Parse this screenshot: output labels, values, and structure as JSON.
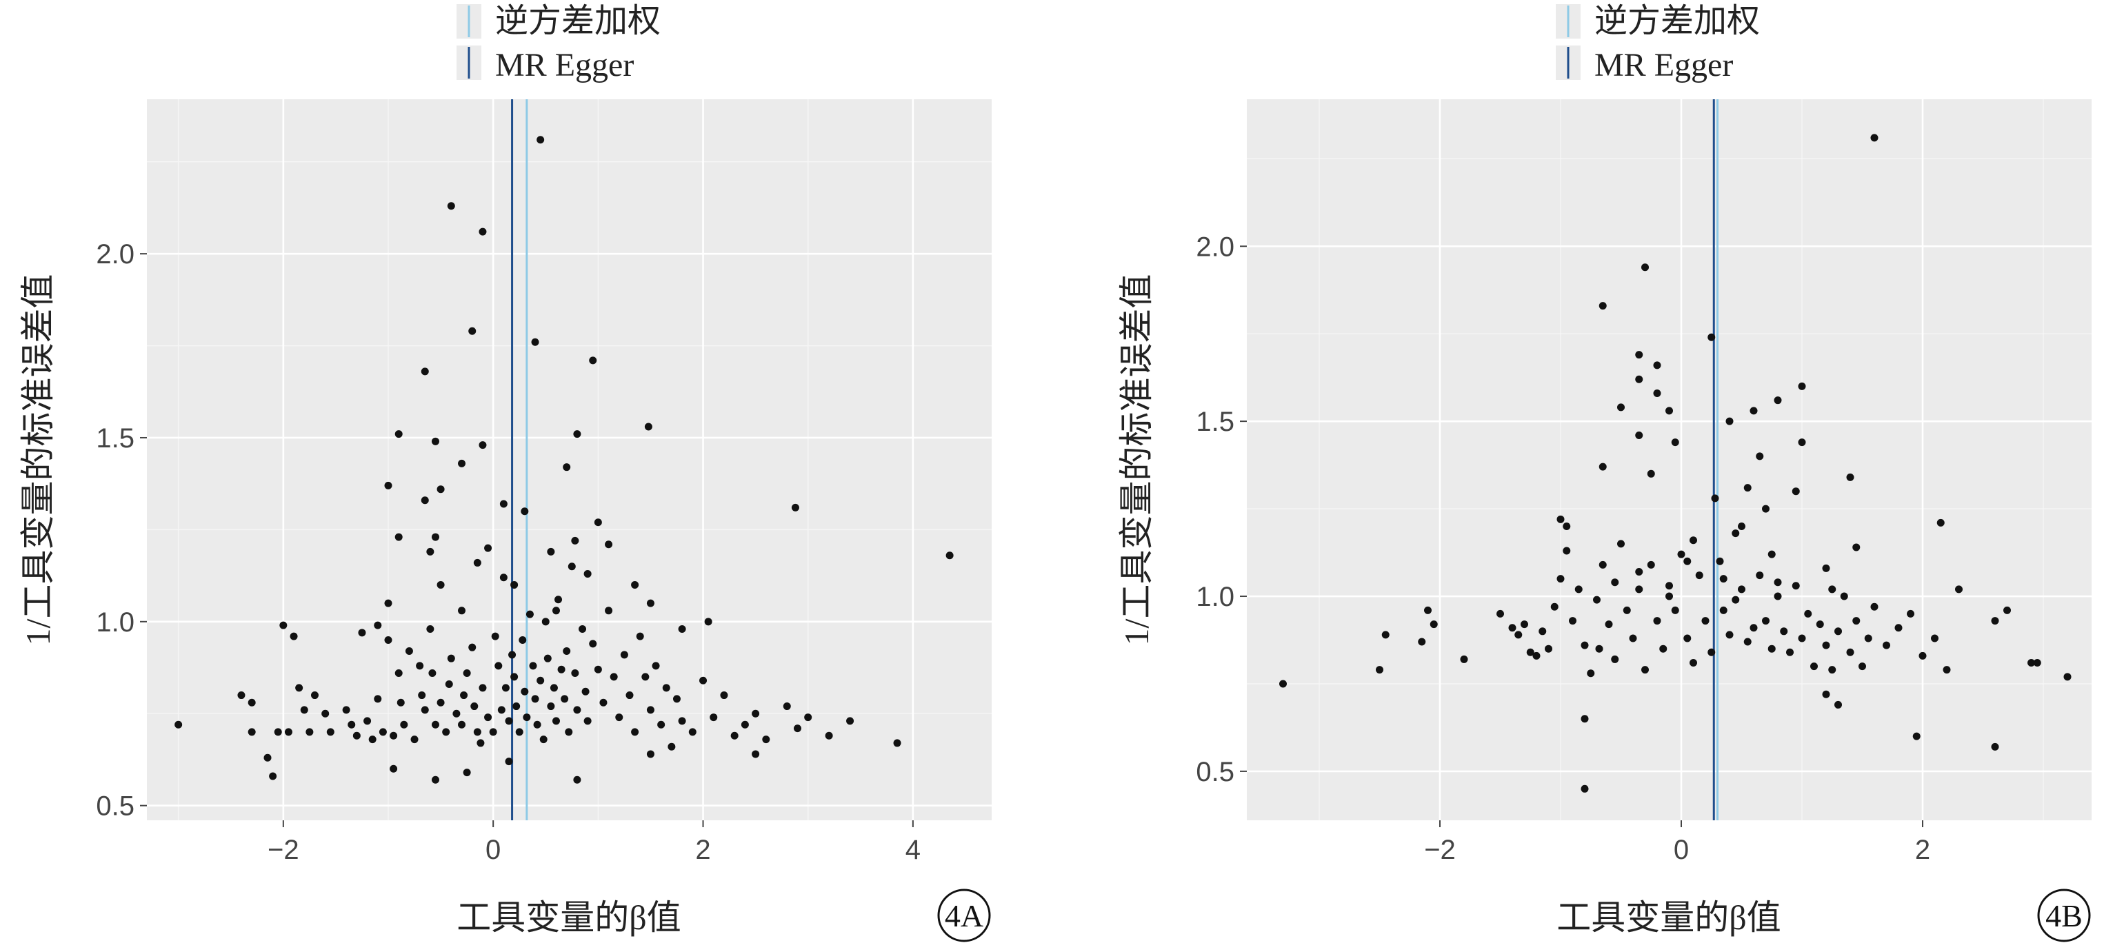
{
  "legend": {
    "items": [
      {
        "label": "逆方差加权",
        "color": "#8ecae6"
      },
      {
        "label": "MR Egger",
        "color": "#1f4e8c"
      }
    ]
  },
  "chart_data": [
    {
      "type": "scatter",
      "panel_label": "4A",
      "xlabel": "工具变量的β值",
      "ylabel": "1/工具变量的标准误差值",
      "xlim": [
        -3.3,
        4.75
      ],
      "ylim": [
        0.46,
        2.42
      ],
      "xticks": [
        -2,
        0,
        2,
        4
      ],
      "yticks": [
        0.5,
        1.0,
        1.5,
        2.0
      ],
      "xtick_labels": [
        "−2",
        "0",
        "2",
        "4"
      ],
      "ytick_labels": [
        "0.5",
        "1.0",
        "1.5",
        "2.0"
      ],
      "grid": true,
      "vlines": [
        {
          "name": "逆方差加权",
          "x": 0.32,
          "color": "#8ecae6"
        },
        {
          "name": "MR Egger",
          "x": 0.18,
          "color": "#1f4e8c"
        }
      ],
      "points": [
        [
          -3.0,
          0.72
        ],
        [
          -2.4,
          0.8
        ],
        [
          -2.3,
          0.78
        ],
        [
          -2.3,
          0.7
        ],
        [
          -2.15,
          0.63
        ],
        [
          -2.1,
          0.58
        ],
        [
          -2.05,
          0.7
        ],
        [
          -2.0,
          0.99
        ],
        [
          -1.95,
          0.7
        ],
        [
          -1.9,
          0.96
        ],
        [
          -1.85,
          0.82
        ],
        [
          -1.8,
          0.76
        ],
        [
          -1.75,
          0.7
        ],
        [
          -1.7,
          0.8
        ],
        [
          -1.6,
          0.75
        ],
        [
          -1.55,
          0.7
        ],
        [
          -1.4,
          0.76
        ],
        [
          -1.35,
          0.72
        ],
        [
          -1.3,
          0.69
        ],
        [
          -1.25,
          0.97
        ],
        [
          -1.2,
          0.73
        ],
        [
          -1.15,
          0.68
        ],
        [
          -1.1,
          0.79
        ],
        [
          -1.1,
          0.99
        ],
        [
          -1.05,
          0.7
        ],
        [
          -1.0,
          0.95
        ],
        [
          -1.0,
          1.05
        ],
        [
          -0.95,
          0.69
        ],
        [
          -0.9,
          0.86
        ],
        [
          -0.88,
          0.78
        ],
        [
          -0.85,
          0.72
        ],
        [
          -0.8,
          0.92
        ],
        [
          -0.75,
          0.68
        ],
        [
          -0.7,
          0.88
        ],
        [
          -0.68,
          0.8
        ],
        [
          -0.65,
          0.76
        ],
        [
          -0.6,
          0.98
        ],
        [
          -0.58,
          0.86
        ],
        [
          -0.55,
          0.72
        ],
        [
          -0.5,
          0.78
        ],
        [
          -0.45,
          0.7
        ],
        [
          -0.42,
          0.83
        ],
        [
          -0.4,
          0.9
        ],
        [
          -0.35,
          0.75
        ],
        [
          -0.3,
          0.72
        ],
        [
          -0.28,
          0.8
        ],
        [
          -0.25,
          0.86
        ],
        [
          -0.2,
          0.93
        ],
        [
          -0.18,
          0.77
        ],
        [
          -0.15,
          0.7
        ],
        [
          -0.12,
          0.67
        ],
        [
          -0.1,
          0.82
        ],
        [
          -0.05,
          0.74
        ],
        [
          0.0,
          0.7
        ],
        [
          0.02,
          0.96
        ],
        [
          0.05,
          0.88
        ],
        [
          0.08,
          0.76
        ],
        [
          0.1,
          1.12
        ],
        [
          0.12,
          0.82
        ],
        [
          0.15,
          0.73
        ],
        [
          0.18,
          0.91
        ],
        [
          0.2,
          0.85
        ],
        [
          0.22,
          0.77
        ],
        [
          0.25,
          0.7
        ],
        [
          0.28,
          0.95
        ],
        [
          0.3,
          0.81
        ],
        [
          0.32,
          0.74
        ],
        [
          0.35,
          1.02
        ],
        [
          0.38,
          0.88
        ],
        [
          0.4,
          0.79
        ],
        [
          0.42,
          0.72
        ],
        [
          0.45,
          0.84
        ],
        [
          0.48,
          0.68
        ],
        [
          0.5,
          1.0
        ],
        [
          0.52,
          0.9
        ],
        [
          0.55,
          0.77
        ],
        [
          0.58,
          0.82
        ],
        [
          0.6,
          0.73
        ],
        [
          0.62,
          1.06
        ],
        [
          0.65,
          0.87
        ],
        [
          0.68,
          0.79
        ],
        [
          0.7,
          0.92
        ],
        [
          0.72,
          0.7
        ],
        [
          0.75,
          1.15
        ],
        [
          0.78,
          0.86
        ],
        [
          0.8,
          0.76
        ],
        [
          0.85,
          0.98
        ],
        [
          0.88,
          0.81
        ],
        [
          0.9,
          0.73
        ],
        [
          0.95,
          0.94
        ],
        [
          1.0,
          0.87
        ],
        [
          1.05,
          0.78
        ],
        [
          1.1,
          1.03
        ],
        [
          1.15,
          0.85
        ],
        [
          1.2,
          0.74
        ],
        [
          1.25,
          0.91
        ],
        [
          1.3,
          0.8
        ],
        [
          1.35,
          0.7
        ],
        [
          1.4,
          0.96
        ],
        [
          1.45,
          0.85
        ],
        [
          1.5,
          0.76
        ],
        [
          1.55,
          0.88
        ],
        [
          1.6,
          0.72
        ],
        [
          1.65,
          0.82
        ],
        [
          1.7,
          0.66
        ],
        [
          1.75,
          0.79
        ],
        [
          1.8,
          0.73
        ],
        [
          1.9,
          0.7
        ],
        [
          2.0,
          0.84
        ],
        [
          2.05,
          1.0
        ],
        [
          2.1,
          0.74
        ],
        [
          2.2,
          0.8
        ],
        [
          2.3,
          0.69
        ],
        [
          2.4,
          0.72
        ],
        [
          2.5,
          0.75
        ],
        [
          2.6,
          0.68
        ],
        [
          2.8,
          0.77
        ],
        [
          2.9,
          0.71
        ],
        [
          3.0,
          0.74
        ],
        [
          3.2,
          0.69
        ],
        [
          3.4,
          0.73
        ],
        [
          3.85,
          0.67
        ],
        [
          4.35,
          1.18
        ],
        [
          2.88,
          1.31
        ],
        [
          1.48,
          1.53
        ],
        [
          -0.9,
          1.51
        ],
        [
          -0.4,
          2.13
        ],
        [
          -0.1,
          2.06
        ],
        [
          0.45,
          2.31
        ],
        [
          0.4,
          1.76
        ],
        [
          -0.2,
          1.79
        ],
        [
          0.95,
          1.71
        ],
        [
          -0.65,
          1.68
        ],
        [
          0.8,
          1.51
        ],
        [
          -0.55,
          1.49
        ],
        [
          -0.1,
          1.48
        ],
        [
          -0.3,
          1.43
        ],
        [
          0.7,
          1.42
        ],
        [
          -1.0,
          1.37
        ],
        [
          -0.5,
          1.36
        ],
        [
          -0.65,
          1.33
        ],
        [
          0.1,
          1.32
        ],
        [
          0.3,
          1.3
        ],
        [
          1.0,
          1.27
        ],
        [
          -0.55,
          1.23
        ],
        [
          -0.9,
          1.23
        ],
        [
          0.78,
          1.22
        ],
        [
          -0.05,
          1.2
        ],
        [
          0.55,
          1.19
        ],
        [
          1.1,
          1.21
        ],
        [
          -0.6,
          1.19
        ],
        [
          -0.15,
          1.16
        ],
        [
          0.9,
          1.13
        ],
        [
          0.2,
          1.1
        ],
        [
          -0.5,
          1.1
        ],
        [
          1.35,
          1.1
        ],
        [
          1.5,
          1.05
        ],
        [
          -0.3,
          1.03
        ],
        [
          0.6,
          1.03
        ],
        [
          1.8,
          0.98
        ],
        [
          -0.55,
          0.57
        ],
        [
          0.8,
          0.57
        ],
        [
          -0.25,
          0.59
        ],
        [
          -0.95,
          0.6
        ],
        [
          0.15,
          0.62
        ],
        [
          1.5,
          0.64
        ],
        [
          2.5,
          0.64
        ]
      ]
    },
    {
      "type": "scatter",
      "panel_label": "4B",
      "xlabel": "工具变量的β值",
      "ylabel": "1/工具变量的标准误差值",
      "xlim": [
        -3.6,
        3.4
      ],
      "ylim": [
        0.36,
        2.42
      ],
      "xticks": [
        -2,
        0,
        2
      ],
      "yticks": [
        0.5,
        1.0,
        1.5,
        2.0
      ],
      "xtick_labels": [
        "−2",
        "0",
        "2"
      ],
      "ytick_labels": [
        "0.5",
        "1.0",
        "1.5",
        "2.0"
      ],
      "grid": true,
      "vlines": [
        {
          "name": "逆方差加权",
          "x": 0.3,
          "color": "#8ecae6"
        },
        {
          "name": "MR Egger",
          "x": 0.27,
          "color": "#1f4e8c"
        }
      ],
      "points": [
        [
          -3.3,
          0.75
        ],
        [
          -2.5,
          0.79
        ],
        [
          -2.45,
          0.89
        ],
        [
          -2.15,
          0.87
        ],
        [
          -2.1,
          0.96
        ],
        [
          -2.05,
          0.92
        ],
        [
          -1.8,
          0.82
        ],
        [
          -1.5,
          0.95
        ],
        [
          -1.4,
          0.91
        ],
        [
          -1.35,
          0.89
        ],
        [
          -1.3,
          0.92
        ],
        [
          -1.25,
          0.84
        ],
        [
          -1.2,
          0.83
        ],
        [
          -1.15,
          0.9
        ],
        [
          -1.1,
          0.85
        ],
        [
          -1.05,
          0.97
        ],
        [
          -1.0,
          1.05
        ],
        [
          -0.95,
          1.13
        ],
        [
          -0.9,
          0.93
        ],
        [
          -0.85,
          1.02
        ],
        [
          -0.8,
          0.86
        ],
        [
          -0.75,
          0.78
        ],
        [
          -0.7,
          0.99
        ],
        [
          -0.68,
          0.85
        ],
        [
          -0.65,
          1.09
        ],
        [
          -0.6,
          0.92
        ],
        [
          -0.55,
          0.82
        ],
        [
          -0.5,
          1.15
        ],
        [
          -0.45,
          0.96
        ],
        [
          -0.4,
          0.88
        ],
        [
          -0.35,
          1.02
        ],
        [
          -0.3,
          0.79
        ],
        [
          -0.25,
          1.09
        ],
        [
          -0.2,
          0.93
        ],
        [
          -0.15,
          0.85
        ],
        [
          -0.1,
          1.03
        ],
        [
          -0.05,
          0.96
        ],
        [
          0.0,
          1.12
        ],
        [
          0.05,
          0.88
        ],
        [
          0.1,
          0.81
        ],
        [
          0.15,
          1.06
        ],
        [
          0.2,
          0.93
        ],
        [
          0.25,
          0.84
        ],
        [
          0.28,
          1.28
        ],
        [
          0.32,
          1.1
        ],
        [
          0.35,
          0.96
        ],
        [
          0.4,
          0.89
        ],
        [
          0.45,
          1.18
        ],
        [
          0.5,
          1.02
        ],
        [
          0.55,
          0.87
        ],
        [
          0.6,
          0.91
        ],
        [
          0.65,
          1.06
        ],
        [
          0.7,
          0.93
        ],
        [
          0.75,
          0.85
        ],
        [
          0.8,
          1.0
        ],
        [
          0.85,
          0.9
        ],
        [
          0.9,
          0.84
        ],
        [
          0.95,
          1.03
        ],
        [
          1.0,
          0.88
        ],
        [
          1.05,
          0.95
        ],
        [
          1.1,
          0.8
        ],
        [
          1.15,
          0.92
        ],
        [
          1.2,
          0.86
        ],
        [
          1.25,
          0.79
        ],
        [
          1.3,
          0.9
        ],
        [
          1.35,
          1.0
        ],
        [
          1.4,
          0.84
        ],
        [
          1.45,
          0.93
        ],
        [
          1.5,
          0.8
        ],
        [
          1.55,
          0.88
        ],
        [
          1.6,
          0.97
        ],
        [
          1.7,
          0.86
        ],
        [
          1.8,
          0.91
        ],
        [
          1.9,
          0.95
        ],
        [
          2.0,
          0.83
        ],
        [
          2.1,
          0.88
        ],
        [
          2.2,
          0.79
        ],
        [
          2.3,
          1.02
        ],
        [
          2.6,
          0.93
        ],
        [
          2.7,
          0.96
        ],
        [
          2.9,
          0.81
        ],
        [
          2.95,
          0.81
        ],
        [
          3.2,
          0.77
        ],
        [
          -0.8,
          0.45
        ],
        [
          -0.8,
          0.65
        ],
        [
          1.2,
          0.72
        ],
        [
          1.3,
          0.69
        ],
        [
          1.95,
          0.6
        ],
        [
          2.6,
          0.57
        ],
        [
          2.15,
          1.21
        ],
        [
          1.6,
          2.31
        ],
        [
          -0.3,
          1.94
        ],
        [
          -0.65,
          1.83
        ],
        [
          0.25,
          1.74
        ],
        [
          -0.35,
          1.69
        ],
        [
          -0.35,
          1.62
        ],
        [
          -0.5,
          1.54
        ],
        [
          -0.2,
          1.66
        ],
        [
          -0.2,
          1.58
        ],
        [
          0.8,
          1.56
        ],
        [
          1.0,
          1.6
        ],
        [
          0.6,
          1.53
        ],
        [
          -0.1,
          1.53
        ],
        [
          0.4,
          1.5
        ],
        [
          -0.35,
          1.46
        ],
        [
          -0.05,
          1.44
        ],
        [
          1.0,
          1.44
        ],
        [
          0.65,
          1.4
        ],
        [
          -0.65,
          1.37
        ],
        [
          -0.25,
          1.35
        ],
        [
          1.4,
          1.34
        ],
        [
          0.55,
          1.31
        ],
        [
          0.95,
          1.3
        ],
        [
          0.7,
          1.25
        ],
        [
          -1.0,
          1.22
        ],
        [
          -0.95,
          1.2
        ],
        [
          0.5,
          1.2
        ],
        [
          0.1,
          1.16
        ],
        [
          1.45,
          1.14
        ],
        [
          0.75,
          1.12
        ],
        [
          0.05,
          1.1
        ],
        [
          -0.35,
          1.07
        ],
        [
          1.2,
          1.08
        ],
        [
          0.35,
          1.05
        ],
        [
          -0.55,
          1.04
        ],
        [
          0.8,
          1.04
        ],
        [
          1.25,
          1.02
        ],
        [
          -0.1,
          1.0
        ],
        [
          0.45,
          0.99
        ]
      ]
    }
  ]
}
